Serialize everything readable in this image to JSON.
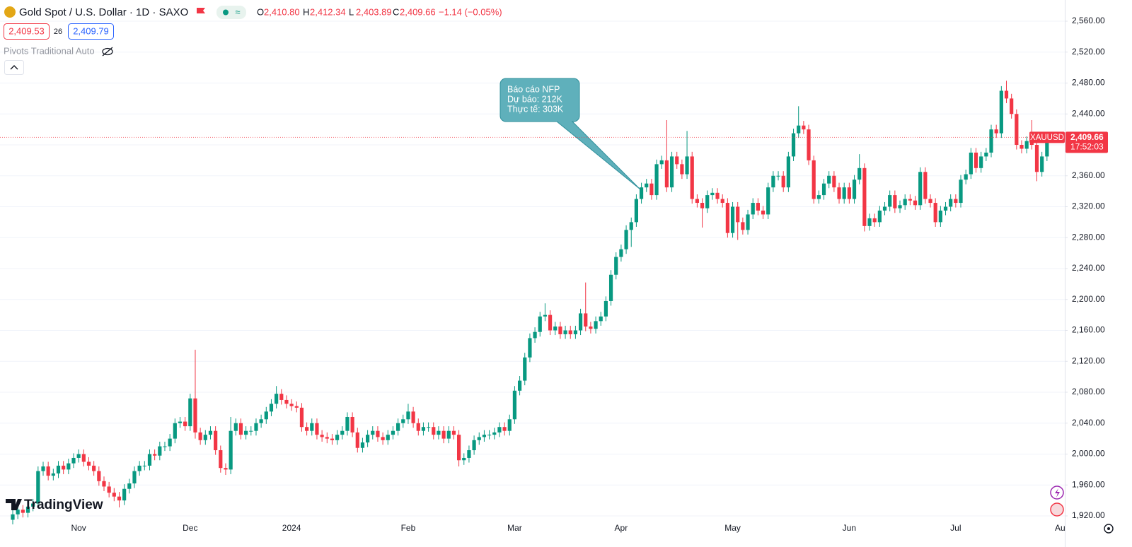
{
  "chart_data": {
    "type": "candlestick",
    "header": {
      "symbol": "Gold Spot / U.S. Dollar · 1D · SAXO",
      "o_label": "O",
      "o_value": "2,410.80",
      "h_label": "H",
      "h_value": "2,412.34",
      "l_label": "L",
      "l_value": "2,403.89",
      "c_label": "C",
      "c_value": "2,409.66",
      "change": "−1.14 (−0.05%)",
      "bid": "2,409.53",
      "spread": "26",
      "ask": "2,409.79",
      "indicator": "Pivots Traditional Auto"
    },
    "annotation": [
      "Báo cáo NFP",
      "Dự báo: 212K",
      "Thực tế: 303K"
    ],
    "ticker": "XAUUSD",
    "last_price": {
      "value": 2409.66,
      "label": "2,409.66"
    },
    "countdown": "17:52:03",
    "logo": "TradingView",
    "x_end_label": "Au",
    "up_color": "#089981",
    "down_color": "#f23645",
    "grid": true,
    "ylim": [
      1920,
      2560
    ],
    "yticks": [
      {
        "value": 1920,
        "label": "1,920.00"
      },
      {
        "value": 1960,
        "label": "1,960.00"
      },
      {
        "value": 2000,
        "label": "2,000.00"
      },
      {
        "value": 2040,
        "label": "2,040.00"
      },
      {
        "value": 2080,
        "label": "2,080.00"
      },
      {
        "value": 2120,
        "label": "2,120.00"
      },
      {
        "value": 2160,
        "label": "2,160.00"
      },
      {
        "value": 2200,
        "label": "2,200.00"
      },
      {
        "value": 2240,
        "label": "2,240.00"
      },
      {
        "value": 2280,
        "label": "2,280.00"
      },
      {
        "value": 2320,
        "label": "2,320.00"
      },
      {
        "value": 2360,
        "label": "2,360.00"
      },
      {
        "value": 2400,
        "label": "2,400.00"
      },
      {
        "value": 2440,
        "label": "2,440.00"
      },
      {
        "value": 2480,
        "label": "2,480.00"
      },
      {
        "value": 2520,
        "label": "2,520.00"
      },
      {
        "value": 2560,
        "label": "2,560.00"
      }
    ],
    "categories": [
      null,
      null,
      null,
      null,
      null,
      null,
      null,
      null,
      null,
      null,
      null,
      null,
      null,
      "Nov",
      null,
      null,
      null,
      null,
      null,
      null,
      null,
      null,
      null,
      null,
      null,
      null,
      null,
      null,
      null,
      null,
      null,
      null,
      null,
      null,
      null,
      "Dec",
      null,
      null,
      null,
      null,
      null,
      null,
      null,
      null,
      null,
      null,
      null,
      null,
      null,
      null,
      null,
      null,
      null,
      null,
      null,
      "2024",
      null,
      null,
      null,
      null,
      null,
      null,
      null,
      null,
      null,
      null,
      null,
      null,
      null,
      null,
      null,
      null,
      null,
      null,
      null,
      null,
      null,
      null,
      "Feb",
      null,
      null,
      null,
      null,
      null,
      null,
      null,
      null,
      null,
      null,
      null,
      null,
      null,
      null,
      null,
      null,
      null,
      null,
      null,
      null,
      "Mar",
      null,
      null,
      null,
      null,
      null,
      null,
      null,
      null,
      null,
      null,
      null,
      null,
      null,
      null,
      null,
      null,
      null,
      null,
      null,
      null,
      "Apr",
      null,
      null,
      null,
      null,
      null,
      null,
      null,
      null,
      null,
      null,
      null,
      null,
      null,
      null,
      null,
      null,
      null,
      null,
      null,
      null,
      null,
      "May",
      null,
      null,
      null,
      null,
      null,
      null,
      null,
      null,
      null,
      null,
      null,
      null,
      null,
      null,
      null,
      null,
      null,
      null,
      null,
      null,
      null,
      null,
      "Jun",
      null,
      null,
      null,
      null,
      null,
      null,
      null,
      null,
      null,
      null,
      null,
      null,
      null,
      null,
      null,
      null,
      null,
      null,
      null,
      null,
      "Jul",
      null,
      null,
      null,
      null,
      null,
      null,
      null,
      null,
      null,
      null,
      null,
      null,
      null,
      null,
      null,
      null,
      null,
      null,
      null
    ],
    "open": [
      1915,
      1922,
      1928,
      1924,
      1932,
      1936,
      1978,
      1984,
      1972,
      1975,
      1985,
      1980,
      1988,
      1995,
      2000,
      1990,
      1985,
      1978,
      1965,
      1958,
      1950,
      1945,
      1940,
      1955,
      1962,
      1978,
      1985,
      1985,
      2000,
      1998,
      2010,
      2010,
      2020,
      2040,
      2042,
      2036,
      2072,
      2028,
      2018,
      2025,
      2030,
      2005,
      1982,
      1980,
      2030,
      2040,
      2025,
      2030,
      2030,
      2040,
      2045,
      2055,
      2065,
      2078,
      2070,
      2065,
      2062,
      2060,
      2035,
      2030,
      2040,
      2025,
      2022,
      2020,
      2018,
      2025,
      2030,
      2048,
      2028,
      2008,
      2015,
      2025,
      2030,
      2022,
      2018,
      2025,
      2030,
      2040,
      2045,
      2055,
      2040,
      2030,
      2035,
      2035,
      2025,
      2030,
      2020,
      2030,
      2025,
      1992,
      1995,
      2005,
      2018,
      2022,
      2025,
      2025,
      2028,
      2035,
      2030,
      2045,
      2082,
      2095,
      2125,
      2150,
      2158,
      2178,
      2180,
      2160,
      2165,
      2155,
      2160,
      2155,
      2160,
      2182,
      2165,
      2162,
      2172,
      2178,
      2198,
      2232,
      2255,
      2265,
      2290,
      2300,
      2330,
      2345,
      2350,
      2335,
      2375,
      2380,
      2345,
      2385,
      2375,
      2362,
      2385,
      2330,
      2325,
      2318,
      2335,
      2338,
      2330,
      2325,
      2286,
      2320,
      2300,
      2290,
      2310,
      2325,
      2315,
      2310,
      2345,
      2360,
      2360,
      2345,
      2385,
      2415,
      2425,
      2420,
      2380,
      2330,
      2335,
      2350,
      2360,
      2345,
      2330,
      2345,
      2330,
      2355,
      2370,
      2295,
      2305,
      2300,
      2315,
      2320,
      2335,
      2318,
      2322,
      2330,
      2328,
      2322,
      2365,
      2330,
      2325,
      2300,
      2315,
      2320,
      2330,
      2325,
      2355,
      2362,
      2390,
      2370,
      2385,
      2390,
      2420,
      2415,
      2470,
      2460,
      2440,
      2400,
      2395,
      2405,
      2400,
      2365,
      2385,
      2410.8
    ],
    "high": [
      1928,
      1934,
      1934,
      1938,
      1942,
      1984,
      1990,
      1990,
      1981,
      1991,
      1991,
      1994,
      2001,
      2006,
      2006,
      1996,
      1991,
      1984,
      1971,
      1964,
      1956,
      1951,
      1961,
      1968,
      1984,
      1991,
      1991,
      2006,
      2006,
      2016,
      2016,
      2026,
      2046,
      2048,
      2048,
      2078,
      2135,
      2034,
      2031,
      2036,
      2036,
      2011,
      1988,
      2048,
      2046,
      2046,
      2036,
      2036,
      2046,
      2051,
      2061,
      2071,
      2088,
      2084,
      2076,
      2071,
      2068,
      2066,
      2041,
      2046,
      2046,
      2031,
      2028,
      2026,
      2031,
      2036,
      2054,
      2054,
      2034,
      2021,
      2031,
      2036,
      2036,
      2028,
      2031,
      2036,
      2046,
      2051,
      2065,
      2061,
      2046,
      2041,
      2041,
      2041,
      2036,
      2036,
      2036,
      2036,
      2031,
      2001,
      2011,
      2024,
      2028,
      2031,
      2031,
      2034,
      2041,
      2041,
      2051,
      2088,
      2101,
      2131,
      2156,
      2164,
      2184,
      2195,
      2186,
      2171,
      2171,
      2166,
      2166,
      2166,
      2188,
      2222,
      2171,
      2178,
      2184,
      2204,
      2238,
      2261,
      2271,
      2296,
      2306,
      2336,
      2351,
      2356,
      2356,
      2381,
      2386,
      2432,
      2391,
      2391,
      2381,
      2418,
      2391,
      2336,
      2331,
      2341,
      2344,
      2344,
      2336,
      2331,
      2326,
      2326,
      2306,
      2316,
      2331,
      2331,
      2321,
      2351,
      2366,
      2366,
      2366,
      2391,
      2421,
      2450,
      2431,
      2426,
      2386,
      2341,
      2356,
      2366,
      2366,
      2351,
      2351,
      2351,
      2361,
      2388,
      2376,
      2311,
      2311,
      2321,
      2326,
      2341,
      2341,
      2328,
      2336,
      2336,
      2334,
      2371,
      2371,
      2336,
      2331,
      2321,
      2326,
      2336,
      2336,
      2361,
      2368,
      2396,
      2396,
      2391,
      2396,
      2426,
      2426,
      2476,
      2483,
      2466,
      2446,
      2406,
      2411,
      2432,
      2406,
      2391,
      2416.8,
      2412.34
    ],
    "low": [
      1909,
      1916,
      1918,
      1918,
      1926,
      1930,
      1972,
      1966,
      1966,
      1969,
      1974,
      1974,
      1982,
      1989,
      1984,
      1979,
      1972,
      1959,
      1952,
      1944,
      1939,
      1931,
      1934,
      1949,
      1956,
      1972,
      1979,
      1979,
      1992,
      1992,
      2004,
      2004,
      2014,
      2034,
      2030,
      2030,
      2020,
      2012,
      2012,
      2019,
      1999,
      1976,
      1973,
      1974,
      2024,
      2019,
      2019,
      2024,
      2024,
      2034,
      2039,
      2049,
      2059,
      2064,
      2059,
      2056,
      2054,
      2029,
      2024,
      2024,
      2019,
      2016,
      2014,
      2012,
      2012,
      2019,
      2024,
      2022,
      2002,
      2002,
      2009,
      2019,
      2016,
      2012,
      2012,
      2019,
      2024,
      2034,
      2039,
      2034,
      2024,
      2024,
      2029,
      2019,
      2019,
      2014,
      2014,
      2019,
      1984,
      1986,
      1989,
      1999,
      2012,
      2016,
      2019,
      2019,
      2022,
      2024,
      2024,
      2039,
      2076,
      2089,
      2119,
      2144,
      2152,
      2172,
      2154,
      2154,
      2149,
      2149,
      2149,
      2149,
      2154,
      2159,
      2156,
      2156,
      2166,
      2172,
      2192,
      2226,
      2249,
      2259,
      2268,
      2294,
      2324,
      2339,
      2329,
      2329,
      2369,
      2339,
      2339,
      2369,
      2356,
      2356,
      2324,
      2319,
      2293,
      2312,
      2329,
      2324,
      2319,
      2280,
      2280,
      2277,
      2284,
      2284,
      2304,
      2309,
      2304,
      2304,
      2339,
      2354,
      2339,
      2339,
      2379,
      2409,
      2414,
      2374,
      2324,
      2324,
      2329,
      2344,
      2339,
      2324,
      2324,
      2324,
      2324,
      2349,
      2288,
      2289,
      2294,
      2294,
      2309,
      2314,
      2312,
      2312,
      2316,
      2322,
      2316,
      2316,
      2324,
      2319,
      2294,
      2294,
      2309,
      2314,
      2319,
      2319,
      2349,
      2356,
      2364,
      2364,
      2379,
      2384,
      2409,
      2409,
      2454,
      2434,
      2394,
      2389,
      2389,
      2394,
      2353,
      2359,
      2379,
      2403.89
    ],
    "close": [
      1922,
      1928,
      1924,
      1932,
      1936,
      1978,
      1984,
      1972,
      1975,
      1985,
      1980,
      1988,
      1995,
      2000,
      1990,
      1985,
      1978,
      1965,
      1958,
      1950,
      1945,
      1940,
      1955,
      1962,
      1978,
      1985,
      1985,
      2000,
      1998,
      2010,
      2010,
      2020,
      2040,
      2042,
      2036,
      2072,
      2028,
      2018,
      2025,
      2030,
      2005,
      1982,
      1980,
      2030,
      2040,
      2025,
      2030,
      2030,
      2040,
      2045,
      2055,
      2065,
      2078,
      2070,
      2065,
      2062,
      2060,
      2035,
      2030,
      2040,
      2025,
      2022,
      2020,
      2018,
      2025,
      2030,
      2048,
      2028,
      2008,
      2015,
      2025,
      2030,
      2022,
      2018,
      2025,
      2030,
      2040,
      2045,
      2055,
      2040,
      2030,
      2035,
      2035,
      2025,
      2030,
      2020,
      2030,
      2025,
      1992,
      1995,
      2005,
      2018,
      2022,
      2025,
      2025,
      2028,
      2035,
      2030,
      2045,
      2082,
      2095,
      2125,
      2150,
      2158,
      2178,
      2180,
      2160,
      2165,
      2155,
      2160,
      2155,
      2160,
      2182,
      2165,
      2162,
      2172,
      2178,
      2198,
      2232,
      2255,
      2265,
      2290,
      2300,
      2330,
      2345,
      2350,
      2335,
      2375,
      2380,
      2345,
      2385,
      2375,
      2362,
      2385,
      2330,
      2325,
      2318,
      2335,
      2338,
      2330,
      2325,
      2286,
      2320,
      2300,
      2290,
      2310,
      2325,
      2315,
      2310,
      2345,
      2360,
      2360,
      2345,
      2385,
      2415,
      2425,
      2420,
      2380,
      2330,
      2335,
      2350,
      2360,
      2345,
      2330,
      2345,
      2330,
      2355,
      2370,
      2295,
      2305,
      2300,
      2315,
      2320,
      2335,
      2318,
      2322,
      2330,
      2328,
      2322,
      2365,
      2330,
      2325,
      2300,
      2315,
      2320,
      2330,
      2325,
      2355,
      2362,
      2390,
      2370,
      2385,
      2390,
      2420,
      2415,
      2470,
      2460,
      2440,
      2400,
      2395,
      2405,
      2400,
      2365,
      2385,
      2410.8,
      2409.66
    ]
  }
}
